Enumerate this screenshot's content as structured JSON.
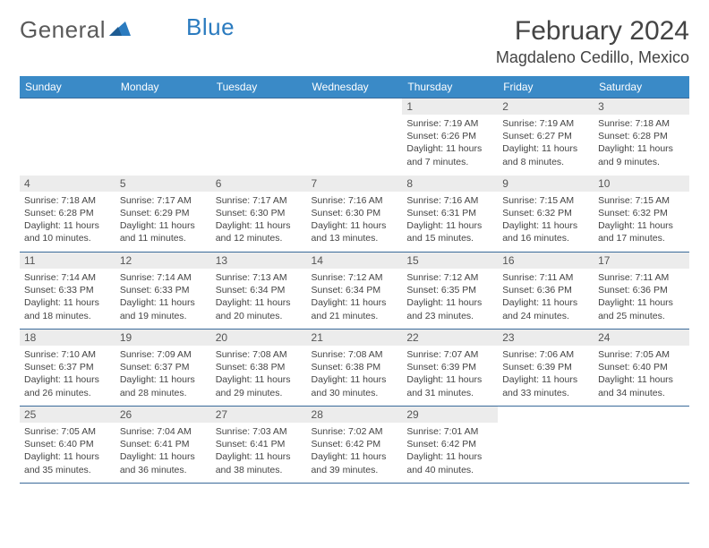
{
  "brand": {
    "word1": "General",
    "word2": "Blue"
  },
  "title": "February 2024",
  "location": "Magdaleno Cedillo, Mexico",
  "colors": {
    "header_bg": "#3a8ac7",
    "header_text": "#ffffff",
    "row_border": "#3a6a9a",
    "daynum_bg": "#ececec",
    "text": "#444444",
    "brand_gray": "#5a5a5a",
    "brand_blue": "#2b7bbf"
  },
  "fonts": {
    "title_size": 30,
    "location_size": 18,
    "dow_size": 12,
    "info_size": 10.5
  },
  "dow": [
    "Sunday",
    "Monday",
    "Tuesday",
    "Wednesday",
    "Thursday",
    "Friday",
    "Saturday"
  ],
  "weeks": [
    [
      null,
      null,
      null,
      null,
      {
        "n": "1",
        "sr": "7:19 AM",
        "ss": "6:26 PM",
        "dl": "11 hours and 7 minutes."
      },
      {
        "n": "2",
        "sr": "7:19 AM",
        "ss": "6:27 PM",
        "dl": "11 hours and 8 minutes."
      },
      {
        "n": "3",
        "sr": "7:18 AM",
        "ss": "6:28 PM",
        "dl": "11 hours and 9 minutes."
      }
    ],
    [
      {
        "n": "4",
        "sr": "7:18 AM",
        "ss": "6:28 PM",
        "dl": "11 hours and 10 minutes."
      },
      {
        "n": "5",
        "sr": "7:17 AM",
        "ss": "6:29 PM",
        "dl": "11 hours and 11 minutes."
      },
      {
        "n": "6",
        "sr": "7:17 AM",
        "ss": "6:30 PM",
        "dl": "11 hours and 12 minutes."
      },
      {
        "n": "7",
        "sr": "7:16 AM",
        "ss": "6:30 PM",
        "dl": "11 hours and 13 minutes."
      },
      {
        "n": "8",
        "sr": "7:16 AM",
        "ss": "6:31 PM",
        "dl": "11 hours and 15 minutes."
      },
      {
        "n": "9",
        "sr": "7:15 AM",
        "ss": "6:32 PM",
        "dl": "11 hours and 16 minutes."
      },
      {
        "n": "10",
        "sr": "7:15 AM",
        "ss": "6:32 PM",
        "dl": "11 hours and 17 minutes."
      }
    ],
    [
      {
        "n": "11",
        "sr": "7:14 AM",
        "ss": "6:33 PM",
        "dl": "11 hours and 18 minutes."
      },
      {
        "n": "12",
        "sr": "7:14 AM",
        "ss": "6:33 PM",
        "dl": "11 hours and 19 minutes."
      },
      {
        "n": "13",
        "sr": "7:13 AM",
        "ss": "6:34 PM",
        "dl": "11 hours and 20 minutes."
      },
      {
        "n": "14",
        "sr": "7:12 AM",
        "ss": "6:34 PM",
        "dl": "11 hours and 21 minutes."
      },
      {
        "n": "15",
        "sr": "7:12 AM",
        "ss": "6:35 PM",
        "dl": "11 hours and 23 minutes."
      },
      {
        "n": "16",
        "sr": "7:11 AM",
        "ss": "6:36 PM",
        "dl": "11 hours and 24 minutes."
      },
      {
        "n": "17",
        "sr": "7:11 AM",
        "ss": "6:36 PM",
        "dl": "11 hours and 25 minutes."
      }
    ],
    [
      {
        "n": "18",
        "sr": "7:10 AM",
        "ss": "6:37 PM",
        "dl": "11 hours and 26 minutes."
      },
      {
        "n": "19",
        "sr": "7:09 AM",
        "ss": "6:37 PM",
        "dl": "11 hours and 28 minutes."
      },
      {
        "n": "20",
        "sr": "7:08 AM",
        "ss": "6:38 PM",
        "dl": "11 hours and 29 minutes."
      },
      {
        "n": "21",
        "sr": "7:08 AM",
        "ss": "6:38 PM",
        "dl": "11 hours and 30 minutes."
      },
      {
        "n": "22",
        "sr": "7:07 AM",
        "ss": "6:39 PM",
        "dl": "11 hours and 31 minutes."
      },
      {
        "n": "23",
        "sr": "7:06 AM",
        "ss": "6:39 PM",
        "dl": "11 hours and 33 minutes."
      },
      {
        "n": "24",
        "sr": "7:05 AM",
        "ss": "6:40 PM",
        "dl": "11 hours and 34 minutes."
      }
    ],
    [
      {
        "n": "25",
        "sr": "7:05 AM",
        "ss": "6:40 PM",
        "dl": "11 hours and 35 minutes."
      },
      {
        "n": "26",
        "sr": "7:04 AM",
        "ss": "6:41 PM",
        "dl": "11 hours and 36 minutes."
      },
      {
        "n": "27",
        "sr": "7:03 AM",
        "ss": "6:41 PM",
        "dl": "11 hours and 38 minutes."
      },
      {
        "n": "28",
        "sr": "7:02 AM",
        "ss": "6:42 PM",
        "dl": "11 hours and 39 minutes."
      },
      {
        "n": "29",
        "sr": "7:01 AM",
        "ss": "6:42 PM",
        "dl": "11 hours and 40 minutes."
      },
      null,
      null
    ]
  ],
  "labels": {
    "sunrise": "Sunrise:",
    "sunset": "Sunset:",
    "daylight": "Daylight:"
  }
}
